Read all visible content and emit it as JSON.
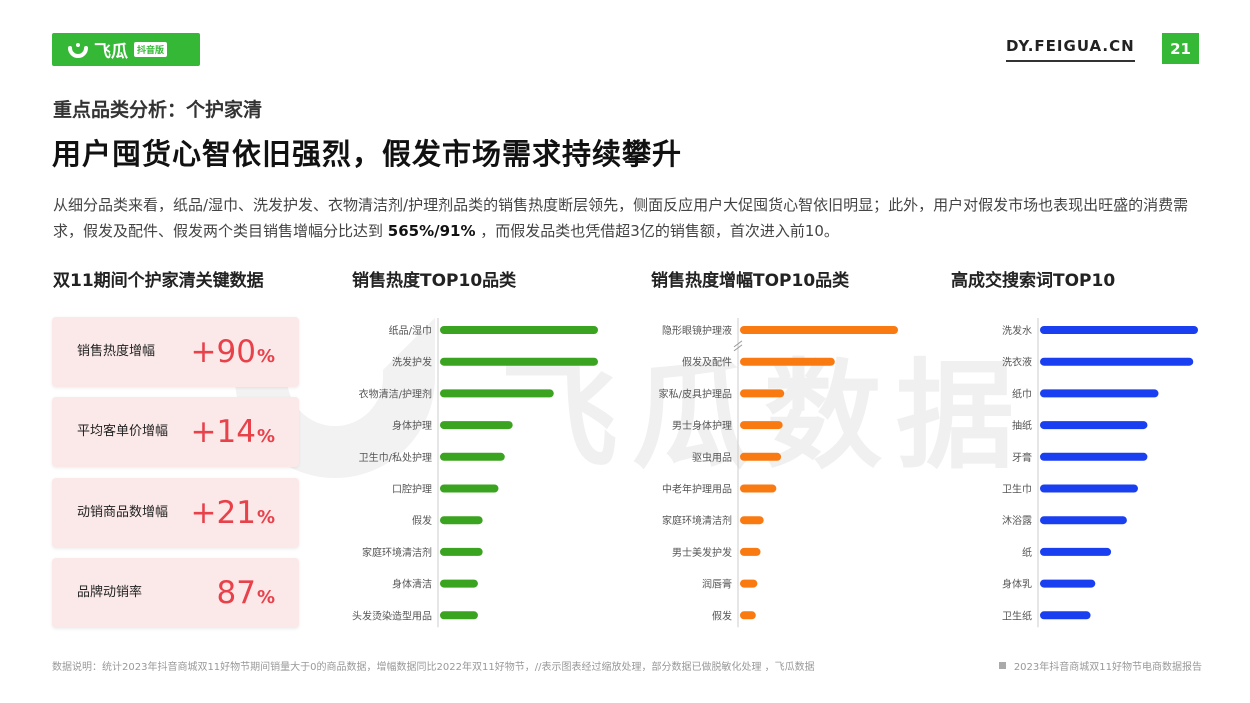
{
  "brand": {
    "name": "飞瓜",
    "tag": "抖音版",
    "site": "DY.FEIGUA.CN",
    "watermark": "飞瓜数据"
  },
  "page_number": "21",
  "subtitle": "重点品类分析：个护家清",
  "headline": "用户囤货心智依旧强烈，假发市场需求持续攀升",
  "description": {
    "part1": "从细分品类来看，纸品/湿巾、洗发护发、衣物清洁剂/护理剂品类的销售热度断层领先，侧面反应用户大促囤货心智依旧明显；此外，用户对假发市场也表现出旺盛的消费需求，假发及配件、假发两个类目销售增幅分比达到 ",
    "highlight": "565%/91%",
    "part2": " ，而假发品类也凭借超3亿的销售额，首次进入前10。"
  },
  "kpi_section_title": "双11期间个护家清关键数据",
  "kpis": [
    {
      "label": "销售热度增幅",
      "value": "+90",
      "unit": "%"
    },
    {
      "label": "平均客单价增幅",
      "value": "+14",
      "unit": "%"
    },
    {
      "label": "动销商品数增幅",
      "value": "+21",
      "unit": "%"
    },
    {
      "label": "品牌动销率",
      "value": "87",
      "unit": "%"
    }
  ],
  "chart_data": [
    {
      "type": "bar",
      "orientation": "horizontal",
      "title": "销售热度TOP10品类",
      "categories": [
        "纸品/湿巾",
        "洗发护发",
        "衣物清洁/护理剂",
        "身体护理",
        "卫生巾/私处护理",
        "口腔护理",
        "假发",
        "家庭环境清洁剂",
        "身体清洁",
        "头发烫染造型用品"
      ],
      "values": [
        100,
        100,
        72,
        46,
        41,
        37,
        27,
        27,
        24,
        24
      ],
      "xlim": [
        0,
        100
      ],
      "color": "#3aa31f",
      "axis_break_after_index": null
    },
    {
      "type": "bar",
      "orientation": "horizontal",
      "title": "销售热度增幅TOP10品类",
      "categories": [
        "隐形眼镜护理液",
        "假发及配件",
        "家私/皮具护理品",
        "男士身体护理",
        "驱虫用品",
        "中老年护理用品",
        "家庭环境清洁剂",
        "男士美发护发",
        "润唇膏",
        "假发"
      ],
      "values": [
        100,
        60,
        28,
        27,
        26,
        23,
        15,
        13,
        11,
        10
      ],
      "xlim": [
        0,
        100
      ],
      "color": "#fa7a12",
      "axis_break_after_index": 0
    },
    {
      "type": "bar",
      "orientation": "horizontal",
      "title": "高成交搜索词TOP10",
      "categories": [
        "洗发水",
        "洗衣液",
        "纸巾",
        "抽纸",
        "牙膏",
        "卫生巾",
        "沐浴露",
        "纸",
        "身体乳",
        "卫生纸"
      ],
      "values": [
        100,
        97,
        75,
        68,
        68,
        62,
        55,
        45,
        35,
        32
      ],
      "xlim": [
        0,
        100
      ],
      "color": "#1a3ff0",
      "axis_break_after_index": null
    }
  ],
  "footer": {
    "note": "数据说明：统计2023年抖音商城双11好物节期间销量大于0的商品数据，增幅数据同比2022年双11好物节，//表示图表经过缩放处理，部分数据已做脱敏化处理 ，飞瓜数据",
    "report": "2023年抖音商城双11好物节电商数据报告"
  }
}
